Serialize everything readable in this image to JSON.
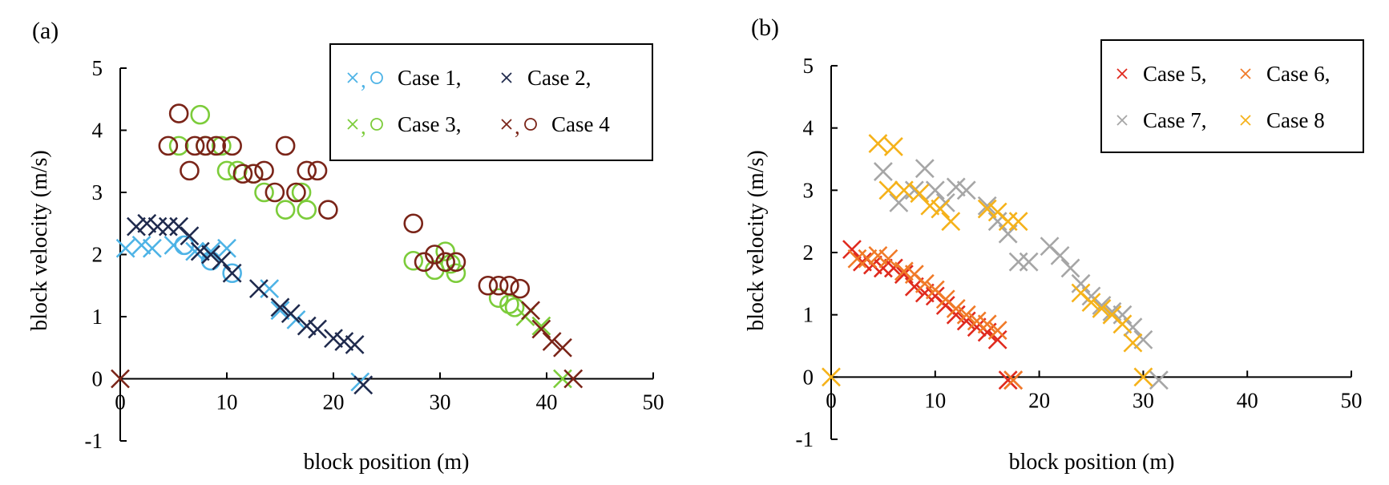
{
  "chart_data": [
    {
      "panel_label": "(a)",
      "type": "scatter",
      "xlabel": "block position (m)",
      "ylabel": "block velocity (m/s)",
      "xlim": [
        0,
        50
      ],
      "ylim": [
        -1,
        5
      ],
      "xticks": [
        0,
        10,
        20,
        30,
        40,
        50
      ],
      "yticks": [
        -1,
        0,
        1,
        2,
        3,
        4,
        5
      ],
      "grid": false,
      "legend_placement": "top-right",
      "legend": [
        {
          "markers": [
            "x",
            "o"
          ],
          "color": "#4db3e6",
          "text": "Case  1,"
        },
        {
          "markers": [
            "x"
          ],
          "color": "#1f2a4d",
          "text": "Case  2,"
        },
        {
          "markers": [
            "x",
            "o"
          ],
          "color": "#7ccc3a",
          "text": "Case 3,"
        },
        {
          "markers": [
            "x",
            "o"
          ],
          "color": "#7a2418",
          "text": "Case 4"
        }
      ],
      "legend_separators": [
        ",",
        ",",
        ","
      ],
      "series": [
        {
          "color": "#4db3e6",
          "marker": "x",
          "points": [
            [
              0.5,
              2.1
            ],
            [
              2,
              2.15
            ],
            [
              3,
              2.1
            ],
            [
              5,
              2.15
            ],
            [
              7,
              2.05
            ],
            [
              8.5,
              2.05
            ],
            [
              10,
              2.1
            ],
            [
              14,
              1.45
            ],
            [
              15,
              1.1
            ],
            [
              16.5,
              0.95
            ],
            [
              22.5,
              -0.05
            ]
          ]
        },
        {
          "color": "#4db3e6",
          "marker": "o",
          "points": [
            [
              6,
              2.15
            ],
            [
              8.5,
              1.9
            ],
            [
              10.5,
              1.7
            ]
          ]
        },
        {
          "color": "#1f2a4d",
          "marker": "x",
          "points": [
            [
              1.5,
              2.45
            ],
            [
              2.5,
              2.5
            ],
            [
              3.5,
              2.45
            ],
            [
              4.5,
              2.45
            ],
            [
              5.5,
              2.45
            ],
            [
              6.5,
              2.3
            ],
            [
              7.5,
              2.05
            ],
            [
              8.5,
              2.0
            ],
            [
              9.5,
              1.9
            ],
            [
              10.5,
              1.7
            ],
            [
              13,
              1.45
            ],
            [
              15,
              1.15
            ],
            [
              16,
              1.05
            ],
            [
              17.5,
              0.85
            ],
            [
              18.5,
              0.8
            ],
            [
              20,
              0.65
            ],
            [
              21,
              0.6
            ],
            [
              22,
              0.55
            ],
            [
              22.8,
              -0.1
            ]
          ]
        },
        {
          "color": "#7ccc3a",
          "marker": "o",
          "points": [
            [
              5.5,
              3.75
            ],
            [
              7.5,
              4.25
            ],
            [
              8,
              3.75
            ],
            [
              9.5,
              3.75
            ],
            [
              10,
              3.35
            ],
            [
              11,
              3.35
            ],
            [
              12.5,
              3.3
            ],
            [
              13.5,
              3.0
            ],
            [
              15.5,
              2.72
            ],
            [
              17,
              3.0
            ],
            [
              17.5,
              2.72
            ],
            [
              27.5,
              1.9
            ],
            [
              29.5,
              1.75
            ],
            [
              30.5,
              2.05
            ],
            [
              31,
              1.85
            ],
            [
              31.5,
              1.7
            ],
            [
              35.5,
              1.3
            ],
            [
              36.5,
              1.2
            ],
            [
              37,
              1.15
            ]
          ]
        },
        {
          "color": "#7ccc3a",
          "marker": "x",
          "points": [
            [
              38,
              1.0
            ],
            [
              39.5,
              0.85
            ],
            [
              41.5,
              0.0
            ]
          ]
        },
        {
          "color": "#7a2418",
          "marker": "o",
          "points": [
            [
              4.5,
              3.75
            ],
            [
              5.5,
              4.27
            ],
            [
              6.5,
              3.35
            ],
            [
              7,
              3.75
            ],
            [
              8,
              3.75
            ],
            [
              9,
              3.75
            ],
            [
              10.5,
              3.75
            ],
            [
              11.5,
              3.3
            ],
            [
              12.5,
              3.3
            ],
            [
              13.5,
              3.35
            ],
            [
              14.5,
              3.0
            ],
            [
              15.5,
              3.75
            ],
            [
              16.5,
              3.0
            ],
            [
              17.5,
              3.35
            ],
            [
              18.5,
              3.35
            ],
            [
              19.5,
              2.72
            ],
            [
              27.5,
              2.5
            ],
            [
              28.5,
              1.88
            ],
            [
              29.5,
              2.0
            ],
            [
              30.5,
              1.88
            ],
            [
              31.5,
              1.88
            ],
            [
              34.5,
              1.5
            ],
            [
              35.5,
              1.5
            ],
            [
              36.5,
              1.5
            ],
            [
              37.5,
              1.45
            ]
          ]
        },
        {
          "color": "#7a2418",
          "marker": "x",
          "points": [
            [
              0,
              0.0
            ],
            [
              38.5,
              1.1
            ],
            [
              39.5,
              0.8
            ],
            [
              40.5,
              0.6
            ],
            [
              41.5,
              0.5
            ],
            [
              42.5,
              0.0
            ]
          ]
        }
      ]
    },
    {
      "panel_label": "(b)",
      "type": "scatter",
      "xlabel": "block position (m)",
      "ylabel": "block velocity (m/s)",
      "xlim": [
        0,
        50
      ],
      "ylim": [
        -1,
        5
      ],
      "xticks": [
        0,
        10,
        20,
        30,
        40,
        50
      ],
      "yticks": [
        -1,
        0,
        1,
        2,
        3,
        4,
        5
      ],
      "grid": false,
      "legend_placement": "top-right",
      "legend": [
        {
          "markers": [
            "x"
          ],
          "color": "#e02a1e",
          "text": "Case 5,"
        },
        {
          "markers": [
            "x"
          ],
          "color": "#f07a28",
          "text": "Case 6,"
        },
        {
          "markers": [
            "x"
          ],
          "color": "#a6a6a6",
          "text": "Case 7,"
        },
        {
          "markers": [
            "x"
          ],
          "color": "#f5b21a",
          "text": "Case 8"
        }
      ],
      "series": [
        {
          "color": "#e02a1e",
          "marker": "x",
          "points": [
            [
              2,
              2.05
            ],
            [
              3,
              1.85
            ],
            [
              4,
              1.8
            ],
            [
              5,
              1.75
            ],
            [
              6,
              1.75
            ],
            [
              7,
              1.65
            ],
            [
              8,
              1.45
            ],
            [
              9,
              1.35
            ],
            [
              10,
              1.3
            ],
            [
              11,
              1.15
            ],
            [
              12,
              1.0
            ],
            [
              13,
              0.9
            ],
            [
              14,
              0.8
            ],
            [
              15,
              0.72
            ],
            [
              16,
              0.6
            ],
            [
              17,
              -0.05
            ],
            [
              17.5,
              -0.05
            ]
          ]
        },
        {
          "color": "#f07a28",
          "marker": "x",
          "points": [
            [
              2.5,
              1.9
            ],
            [
              3.5,
              1.9
            ],
            [
              4.5,
              1.95
            ],
            [
              5.5,
              1.9
            ],
            [
              7,
              1.7
            ],
            [
              8,
              1.65
            ],
            [
              9,
              1.5
            ],
            [
              10,
              1.4
            ],
            [
              11,
              1.25
            ],
            [
              12,
              1.1
            ],
            [
              13,
              1.0
            ],
            [
              14,
              0.9
            ],
            [
              15,
              0.85
            ],
            [
              16,
              0.75
            ],
            [
              17.5,
              -0.05
            ]
          ]
        },
        {
          "color": "#a6a6a6",
          "marker": "x",
          "points": [
            [
              5,
              3.3
            ],
            [
              6.5,
              2.8
            ],
            [
              8,
              3.0
            ],
            [
              9,
              3.35
            ],
            [
              10,
              3.0
            ],
            [
              11,
              2.8
            ],
            [
              12,
              3.05
            ],
            [
              13,
              3.0
            ],
            [
              15,
              2.75
            ],
            [
              16,
              2.5
            ],
            [
              17,
              2.3
            ],
            [
              18,
              1.85
            ],
            [
              19,
              1.85
            ],
            [
              21,
              2.1
            ],
            [
              22,
              1.95
            ],
            [
              23,
              1.75
            ],
            [
              24,
              1.5
            ],
            [
              25,
              1.3
            ],
            [
              26,
              1.15
            ],
            [
              27,
              1.05
            ],
            [
              28,
              1.0
            ],
            [
              29,
              0.8
            ],
            [
              30,
              0.6
            ],
            [
              31.5,
              -0.05
            ]
          ]
        },
        {
          "color": "#f5b21a",
          "marker": "x",
          "points": [
            [
              0,
              0.0
            ],
            [
              4.5,
              3.75
            ],
            [
              6,
              3.7
            ],
            [
              5.5,
              3.0
            ],
            [
              7,
              3.0
            ],
            [
              8.5,
              2.95
            ],
            [
              9.5,
              2.75
            ],
            [
              10.5,
              2.7
            ],
            [
              11.5,
              2.5
            ],
            [
              15,
              2.7
            ],
            [
              16,
              2.65
            ],
            [
              17,
              2.5
            ],
            [
              18,
              2.5
            ],
            [
              24,
              1.35
            ],
            [
              25,
              1.2
            ],
            [
              26,
              1.1
            ],
            [
              27,
              1.0
            ],
            [
              28,
              0.85
            ],
            [
              29,
              0.55
            ],
            [
              30,
              0.0
            ]
          ]
        }
      ]
    }
  ]
}
